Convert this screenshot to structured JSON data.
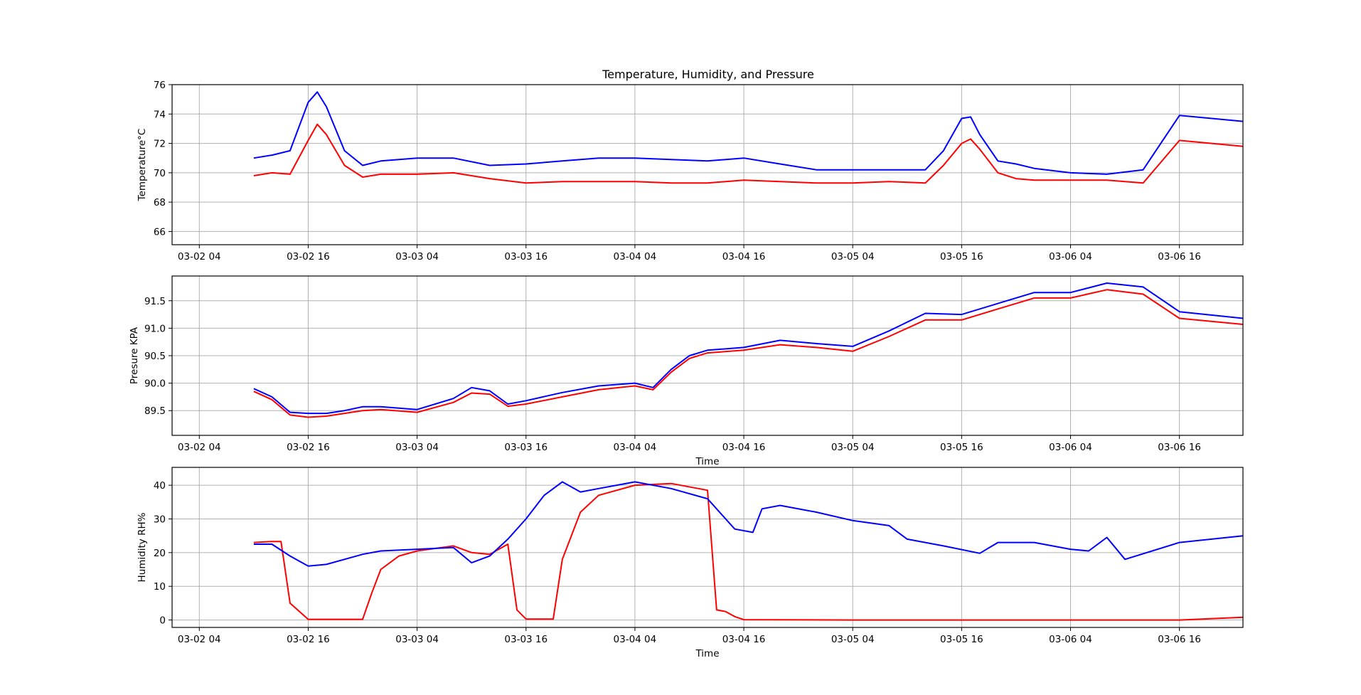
{
  "title": "Temperature, Humidity, and Pressure",
  "colors": {
    "series_a": "#ff0000",
    "series_b": "#0000ff",
    "grid": "#b0b0b0",
    "frame": "#000000"
  },
  "x_axis": {
    "ticks": [
      "03-02 04",
      "03-02 16",
      "03-03 04",
      "03-03 16",
      "03-04 04",
      "03-04 16",
      "03-05 04",
      "03-05 16",
      "03-06 04",
      "03-06 16"
    ],
    "range_hours_label": "03-02 04 to 03-06 16",
    "label_panel2": "Time",
    "label_panel3": "Time"
  },
  "chart_data": [
    {
      "type": "line",
      "title": "Temperature, Humidity, and Pressure",
      "ylabel": "Temperature°C",
      "ylim": [
        65.1,
        76.0
      ],
      "yticks": [
        "66",
        "68",
        "70",
        "72",
        "74",
        "76"
      ],
      "grid": true,
      "series": [
        {
          "color": "red",
          "x": [
            "03-02 10",
            "03-02 12",
            "03-02 14",
            "03-02 16",
            "03-02 17",
            "03-02 18",
            "03-02 20",
            "03-02 22",
            "03-03 00",
            "03-03 04",
            "03-03 08",
            "03-03 12",
            "03-03 16",
            "03-03 20",
            "03-04 00",
            "03-04 04",
            "03-04 08",
            "03-04 12",
            "03-04 16",
            "03-04 20",
            "03-05 00",
            "03-05 04",
            "03-05 08",
            "03-05 12",
            "03-05 14",
            "03-05 16",
            "03-05 17",
            "03-05 18",
            "03-05 20",
            "03-05 22",
            "03-06 00",
            "03-06 04",
            "03-06 08",
            "03-06 12",
            "03-06 16",
            "03-06 23"
          ],
          "y": [
            69.8,
            70.0,
            69.9,
            72.2,
            73.3,
            72.6,
            70.5,
            69.7,
            69.9,
            69.9,
            70.0,
            69.6,
            69.3,
            69.4,
            69.4,
            69.4,
            69.3,
            69.3,
            69.5,
            69.4,
            69.3,
            69.3,
            69.4,
            69.3,
            70.5,
            72.0,
            72.3,
            71.6,
            70.0,
            69.6,
            69.5,
            69.5,
            69.5,
            69.3,
            72.2,
            71.8
          ]
        },
        {
          "color": "blue",
          "x": [
            "03-02 10",
            "03-02 12",
            "03-02 14",
            "03-02 16",
            "03-02 17",
            "03-02 18",
            "03-02 20",
            "03-02 22",
            "03-03 00",
            "03-03 04",
            "03-03 08",
            "03-03 12",
            "03-03 16",
            "03-03 20",
            "03-04 00",
            "03-04 04",
            "03-04 08",
            "03-04 12",
            "03-04 16",
            "03-04 20",
            "03-05 00",
            "03-05 04",
            "03-05 08",
            "03-05 12",
            "03-05 14",
            "03-05 16",
            "03-05 17",
            "03-05 18",
            "03-05 20",
            "03-05 22",
            "03-06 00",
            "03-06 04",
            "03-06 08",
            "03-06 12",
            "03-06 16",
            "03-06 23"
          ],
          "y": [
            71.0,
            71.2,
            71.5,
            74.8,
            75.5,
            74.5,
            71.5,
            70.5,
            70.8,
            71.0,
            71.0,
            70.5,
            70.6,
            70.8,
            71.0,
            71.0,
            70.9,
            70.8,
            71.0,
            70.6,
            70.2,
            70.2,
            70.2,
            70.2,
            71.5,
            73.7,
            73.8,
            72.6,
            70.8,
            70.6,
            70.3,
            70.0,
            69.9,
            70.2,
            73.9,
            73.5
          ]
        }
      ]
    },
    {
      "type": "line",
      "ylabel": "Presure KPA",
      "xlabel": "Time",
      "ylim": [
        89.05,
        91.95
      ],
      "yticks": [
        "89.5",
        "90.0",
        "90.5",
        "91.0",
        "91.5"
      ],
      "grid": true,
      "series": [
        {
          "color": "red",
          "x": [
            "03-02 10",
            "03-02 12",
            "03-02 14",
            "03-02 16",
            "03-02 18",
            "03-02 20",
            "03-02 22",
            "03-03 00",
            "03-03 04",
            "03-03 08",
            "03-03 10",
            "03-03 12",
            "03-03 14",
            "03-03 16",
            "03-03 20",
            "03-04 00",
            "03-04 04",
            "03-04 06",
            "03-04 08",
            "03-04 10",
            "03-04 12",
            "03-04 16",
            "03-04 20",
            "03-05 00",
            "03-05 04",
            "03-05 08",
            "03-05 12",
            "03-05 16",
            "03-05 20",
            "03-06 00",
            "03-06 04",
            "03-06 08",
            "03-06 12",
            "03-06 16",
            "03-06 23"
          ],
          "y": [
            89.85,
            89.7,
            89.42,
            89.38,
            89.4,
            89.45,
            89.5,
            89.52,
            89.47,
            89.65,
            89.82,
            89.8,
            89.58,
            89.62,
            89.75,
            89.88,
            89.95,
            89.88,
            90.2,
            90.45,
            90.55,
            90.6,
            90.7,
            90.65,
            90.58,
            90.85,
            91.15,
            91.15,
            91.35,
            91.55,
            91.55,
            91.7,
            91.62,
            91.18,
            91.07
          ]
        },
        {
          "color": "blue",
          "x": [
            "03-02 10",
            "03-02 12",
            "03-02 14",
            "03-02 16",
            "03-02 18",
            "03-02 20",
            "03-02 22",
            "03-03 00",
            "03-03 04",
            "03-03 08",
            "03-03 10",
            "03-03 12",
            "03-03 14",
            "03-03 16",
            "03-03 20",
            "03-04 00",
            "03-04 04",
            "03-04 06",
            "03-04 08",
            "03-04 10",
            "03-04 12",
            "03-04 16",
            "03-04 20",
            "03-05 00",
            "03-05 04",
            "03-05 08",
            "03-05 12",
            "03-05 16",
            "03-05 20",
            "03-06 00",
            "03-06 04",
            "03-06 08",
            "03-06 12",
            "03-06 16",
            "03-06 23"
          ],
          "y": [
            89.9,
            89.75,
            89.47,
            89.45,
            89.45,
            89.5,
            89.57,
            89.57,
            89.52,
            89.72,
            89.92,
            89.86,
            89.62,
            89.68,
            89.83,
            89.95,
            90.0,
            89.92,
            90.25,
            90.5,
            90.6,
            90.65,
            90.78,
            90.72,
            90.67,
            90.95,
            91.27,
            91.25,
            91.45,
            91.65,
            91.65,
            91.82,
            91.75,
            91.3,
            91.18
          ]
        }
      ]
    },
    {
      "type": "line",
      "ylabel": "Humidity RH%",
      "xlabel": "Time",
      "ylim": [
        -2.2,
        45.3
      ],
      "yticks": [
        "0",
        "10",
        "20",
        "30",
        "40"
      ],
      "grid": true,
      "series": [
        {
          "color": "red",
          "x": [
            "03-02 10",
            "03-02 12",
            "03-02 13",
            "03-02 14",
            "03-02 16",
            "03-02 22",
            "03-02 23",
            "03-03 00",
            "03-03 02",
            "03-03 04",
            "03-03 08",
            "03-03 10",
            "03-03 12",
            "03-03 14",
            "03-03 15",
            "03-03 16",
            "03-03 17",
            "03-03 19",
            "03-03 20",
            "03-03 22",
            "03-04 00",
            "03-04 04",
            "03-04 08",
            "03-04 12",
            "03-04 13",
            "03-04 14",
            "03-04 15",
            "03-04 16",
            "03-05 04",
            "03-05 16",
            "03-06 04",
            "03-06 16",
            "03-06 23"
          ],
          "y": [
            23.0,
            23.3,
            23.3,
            5.0,
            0.2,
            0.2,
            8.0,
            15.0,
            19.0,
            20.5,
            22.0,
            20.0,
            19.5,
            22.5,
            3.0,
            0.3,
            0.3,
            0.3,
            18.0,
            32.0,
            37.0,
            40.0,
            40.5,
            38.5,
            3.0,
            2.5,
            1.0,
            0.1,
            0.0,
            0.0,
            0.0,
            0.0,
            0.8
          ]
        },
        {
          "color": "blue",
          "x": [
            "03-02 10",
            "03-02 12",
            "03-02 14",
            "03-02 16",
            "03-02 18",
            "03-02 22",
            "03-03 00",
            "03-03 04",
            "03-03 08",
            "03-03 10",
            "03-03 12",
            "03-03 14",
            "03-03 16",
            "03-03 18",
            "03-03 20",
            "03-03 22",
            "03-04 00",
            "03-04 04",
            "03-04 08",
            "03-04 12",
            "03-04 15",
            "03-04 17",
            "03-04 18",
            "03-04 20",
            "03-05 00",
            "03-05 04",
            "03-05 08",
            "03-05 10",
            "03-05 14",
            "03-05 18",
            "03-05 20",
            "03-06 00",
            "03-06 04",
            "03-06 06",
            "03-06 08",
            "03-06 10",
            "03-06 16",
            "03-06 23"
          ],
          "y": [
            22.5,
            22.5,
            19.0,
            16.0,
            16.5,
            19.5,
            20.5,
            21.0,
            21.5,
            17.0,
            19.0,
            24.0,
            30.0,
            37.0,
            41.0,
            38.0,
            39.0,
            41.0,
            39.0,
            36.0,
            27.0,
            26.0,
            33.0,
            34.0,
            32.0,
            29.5,
            28.0,
            24.0,
            22.0,
            19.8,
            23.0,
            23.0,
            21.0,
            20.5,
            24.5,
            18.0,
            23.0,
            25.0
          ]
        }
      ]
    }
  ]
}
